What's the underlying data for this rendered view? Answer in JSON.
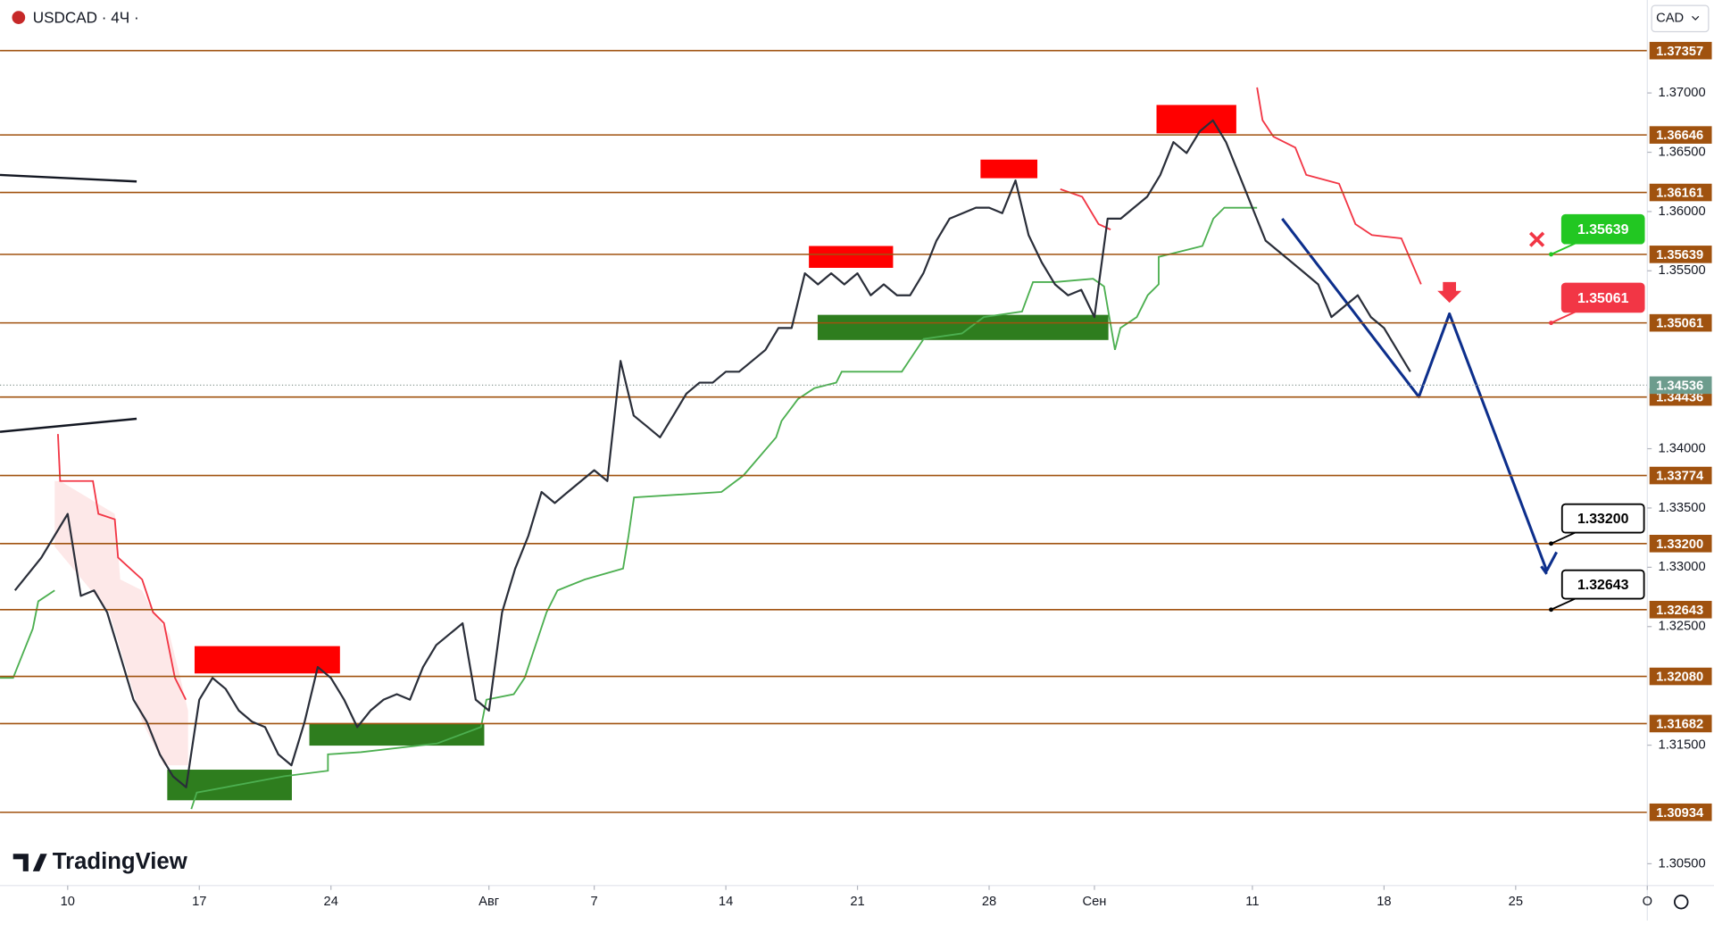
{
  "chart_data": {
    "type": "line",
    "title": "USDCAD · 4Ч ·",
    "currency": "CAD",
    "brand": "TradingView",
    "series": [
      {
        "name": "USDCAD",
        "color": "#2a2e39",
        "x": [
          -2,
          -1,
          0,
          0.5,
          1,
          1.5,
          2,
          2.5,
          3,
          3.5,
          4,
          4.5,
          5,
          5.5,
          6,
          6.5,
          7,
          7.5,
          8,
          8.5,
          9,
          9.5,
          10,
          10.5,
          11,
          11.5,
          12,
          12.5,
          13,
          13.5,
          14,
          14.5,
          15,
          15.5,
          16,
          16.5,
          17,
          17.5,
          18,
          18.5,
          19,
          19.5,
          20,
          20.5,
          21,
          21.5,
          22,
          22.5,
          23,
          23.5,
          24,
          24.5,
          25,
          25.5,
          26,
          26.5,
          27,
          27.5,
          28,
          28.5,
          29,
          29.5,
          30,
          30.5,
          31,
          31.5,
          32,
          32.5,
          33,
          33.5,
          34,
          34.5,
          35,
          35.5,
          36,
          36.5,
          37,
          37.5,
          38,
          38.5,
          39,
          39.5,
          40,
          40.5,
          41,
          41.5,
          42,
          42.5,
          43,
          43.5,
          44,
          44.5,
          45,
          45.5,
          46,
          46.5,
          47,
          47.5,
          48,
          48.5,
          49,
          49.5,
          50,
          50.5,
          51
        ],
        "values": [
          1.32805,
          1.33081,
          1.3345,
          1.32759,
          1.32805,
          1.3262,
          1.32252,
          1.31883,
          1.31698,
          1.31422,
          1.31237,
          1.31145,
          1.31883,
          1.32067,
          1.31975,
          1.31791,
          1.31698,
          1.31652,
          1.31422,
          1.3133,
          1.31698,
          1.32159,
          1.32067,
          1.31883,
          1.31652,
          1.31791,
          1.31883,
          1.31929,
          1.31883,
          1.32159,
          1.32344,
          1.32436,
          1.32528,
          1.31883,
          1.31791,
          1.3262,
          1.32989,
          1.33266,
          1.33635,
          1.33542,
          1.33635,
          1.33727,
          1.33819,
          1.33727,
          1.34741,
          1.3428,
          1.34188,
          1.34096,
          1.3428,
          1.34464,
          1.34557,
          1.34557,
          1.34649,
          1.34649,
          1.34741,
          1.34833,
          1.35018,
          1.35018,
          1.35479,
          1.35386,
          1.35479,
          1.35386,
          1.35479,
          1.35294,
          1.35386,
          1.35294,
          1.35294,
          1.35479,
          1.35755,
          1.3594,
          1.35986,
          1.36032,
          1.36032,
          1.35986,
          1.36262,
          1.35801,
          1.35571,
          1.35386,
          1.35294,
          1.3534,
          1.3511,
          1.3594,
          1.3594,
          1.36032,
          1.36124,
          1.36308,
          1.36585,
          1.36493,
          1.36677,
          1.36769,
          1.36585,
          1.36308,
          1.36032,
          1.35755,
          1.35663,
          1.35571,
          1.35479,
          1.35386,
          1.3511,
          1.35202,
          1.35294,
          1.3511,
          1.35018,
          1.34833,
          1.34649
        ]
      }
    ],
    "last_price": {
      "value": 1.34536,
      "label": "1.34536"
    },
    "levels": [
      {
        "value": 1.37357,
        "label": "1.37357"
      },
      {
        "value": 1.36646,
        "label": "1.36646"
      },
      {
        "value": 1.36161,
        "label": "1.36161"
      },
      {
        "value": 1.35639,
        "label": "1.35639"
      },
      {
        "value": 1.35061,
        "label": "1.35061"
      },
      {
        "value": 1.34436,
        "label": "1.34436"
      },
      {
        "value": 1.33774,
        "label": "1.33774"
      },
      {
        "value": 1.332,
        "label": "1.33200"
      },
      {
        "value": 1.32643,
        "label": "1.32643"
      },
      {
        "value": 1.3208,
        "label": "1.32080"
      },
      {
        "value": 1.31682,
        "label": "1.31682"
      },
      {
        "value": 1.30934,
        "label": "1.30934"
      }
    ],
    "callouts": [
      {
        "value": 1.35639,
        "label": "1.35639",
        "color": "#22c722"
      },
      {
        "value": 1.35061,
        "label": "1.35061",
        "color": "#f23645"
      },
      {
        "value": 1.332,
        "label": "1.33200",
        "color": "#000000"
      },
      {
        "value": 1.32643,
        "label": "1.32643",
        "color": "#000000"
      }
    ],
    "level_color": "#a0520f",
    "ylim": [
      1.30316,
      1.37784
    ],
    "yticks": [
      {
        "value": 1.37,
        "label": "1.37000"
      },
      {
        "value": 1.365,
        "label": "1.36500"
      },
      {
        "value": 1.36,
        "label": "1.36000"
      },
      {
        "value": 1.355,
        "label": "1.35500"
      },
      {
        "value": 1.34,
        "label": "1.34000"
      },
      {
        "value": 1.335,
        "label": "1.33500"
      },
      {
        "value": 1.33,
        "label": "1.33000"
      },
      {
        "value": 1.325,
        "label": "1.32500"
      },
      {
        "value": 1.315,
        "label": "1.31500"
      },
      {
        "value": 1.305,
        "label": "1.30500"
      }
    ],
    "xlim": [
      -2.57,
      60
    ],
    "xticks": [
      {
        "value": 0,
        "label": "10"
      },
      {
        "value": 5,
        "label": "17"
      },
      {
        "value": 10,
        "label": "24"
      },
      {
        "value": 16,
        "label": "Авг"
      },
      {
        "value": 20,
        "label": "7"
      },
      {
        "value": 25,
        "label": "14"
      },
      {
        "value": 30,
        "label": "21"
      },
      {
        "value": 35,
        "label": "28"
      },
      {
        "value": 39,
        "label": "Сен"
      },
      {
        "value": 45,
        "label": "11"
      },
      {
        "value": 50,
        "label": "18"
      },
      {
        "value": 55,
        "label": "25"
      },
      {
        "value": 60,
        "label": "О"
      }
    ]
  }
}
